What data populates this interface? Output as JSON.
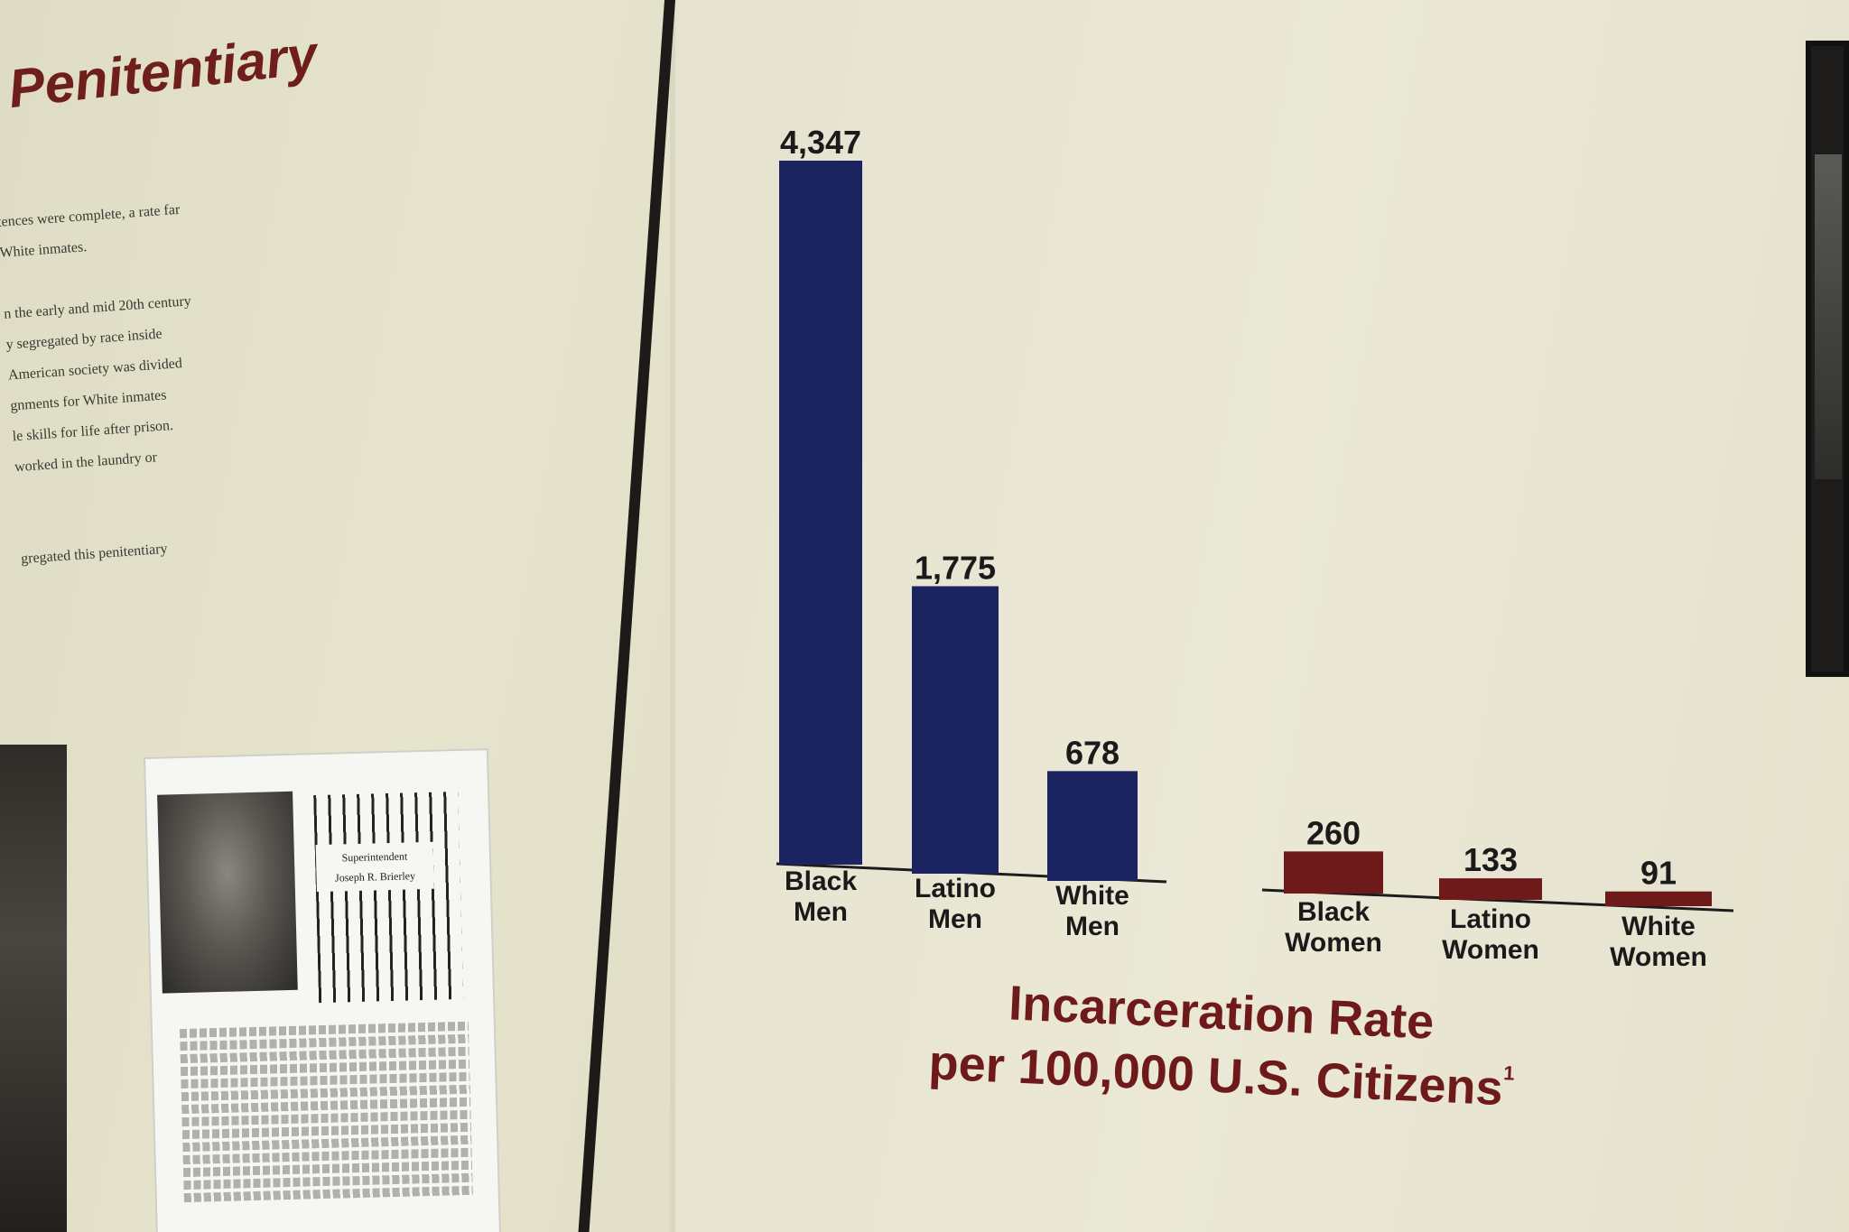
{
  "exhibit": {
    "title": "e Penitentiary",
    "body_lines": [
      "tences were complete, a rate far",
      "White inmates.",
      "",
      "n the early and mid 20th century",
      "y segregated by race inside",
      "American society was divided",
      "gnments for White inmates",
      "le skills for life after prison.",
      "worked in the laundry or",
      "",
      "",
      "gregated this penitentiary"
    ],
    "card_caption_title": "Superintendent",
    "card_caption_name": "Joseph R. Brierley"
  },
  "chart_data": {
    "type": "bar",
    "title": "Incarceration Rate",
    "subtitle": "per 100,000 U.S. Citizens",
    "footnote_marker": "1",
    "groups": [
      {
        "name": "",
        "color": "#1b2461",
        "categories": [
          "Black Men",
          "Latino Men",
          "White Men"
        ],
        "values": [
          4347,
          1775,
          678
        ],
        "value_labels": [
          "4,347",
          "1,775",
          "678"
        ]
      },
      {
        "name": "",
        "color": "#6e1a1a",
        "categories": [
          "Black Women",
          "Latino Women",
          "White Women"
        ],
        "values": [
          260,
          133,
          91
        ],
        "value_labels": [
          "260",
          "133",
          "91"
        ]
      }
    ],
    "grid": false,
    "legend": "none"
  }
}
